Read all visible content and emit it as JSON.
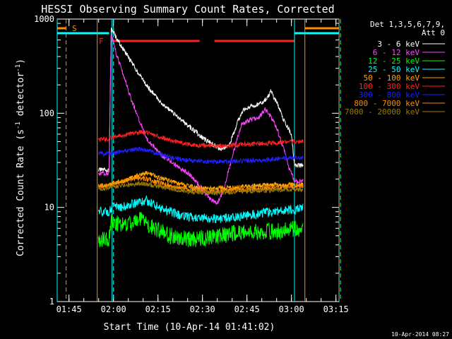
{
  "chart_data": {
    "type": "line",
    "title": "HESSI Observing Summary Count Rates, Corrected",
    "xlabel": "Start Time (10-Apr-14 01:41:02)",
    "ylabel": "Corrected Count Rate (s⁻¹ detector⁻¹)",
    "ylog": true,
    "ylim": [
      1,
      1000
    ],
    "xlim_minutes": [
      0,
      95
    ],
    "x_ticks": [
      "01:45",
      "02:00",
      "02:15",
      "02:30",
      "02:45",
      "03:00",
      "03:15"
    ],
    "y_ticks": [
      "1",
      "10",
      "100",
      "1000"
    ],
    "grid": false,
    "legend_placement": "right",
    "legend_title": [
      "Det 1,3,5,6,7,9,",
      "Att 0"
    ],
    "footer": "10-Apr-2014 08:27",
    "annotations": {
      "S": "S",
      "F": "F"
    },
    "series": [
      {
        "name": "3 - 6 keV",
        "color": "#ffffff",
        "points": [
          [
            13.9,
            25
          ],
          [
            17.5,
            25
          ],
          [
            18.2,
            800
          ],
          [
            20,
            620
          ],
          [
            25,
            350
          ],
          [
            30,
            200
          ],
          [
            35,
            130
          ],
          [
            40,
            95
          ],
          [
            45,
            70
          ],
          [
            50,
            52
          ],
          [
            55,
            42
          ],
          [
            58,
            45
          ],
          [
            61,
            85
          ],
          [
            63,
            110
          ],
          [
            66,
            120
          ],
          [
            69,
            130
          ],
          [
            71,
            150
          ],
          [
            72,
            170
          ],
          [
            74,
            130
          ],
          [
            76,
            90
          ],
          [
            79,
            60
          ],
          [
            80,
            28
          ],
          [
            83,
            28
          ]
        ]
      },
      {
        "name": "6 - 12 keV",
        "color": "#ff44ff",
        "points": [
          [
            13.9,
            23
          ],
          [
            17.5,
            23
          ],
          [
            18.2,
            700
          ],
          [
            20,
            420
          ],
          [
            23,
            220
          ],
          [
            25,
            140
          ],
          [
            28,
            80
          ],
          [
            30,
            55
          ],
          [
            35,
            36
          ],
          [
            40,
            28
          ],
          [
            45,
            22
          ],
          [
            48,
            17
          ],
          [
            50,
            14
          ],
          [
            52,
            12
          ],
          [
            54,
            11
          ],
          [
            56,
            15
          ],
          [
            58,
            26
          ],
          [
            60,
            45
          ],
          [
            62,
            75
          ],
          [
            65,
            85
          ],
          [
            68,
            90
          ],
          [
            70,
            110
          ],
          [
            72,
            92
          ],
          [
            74,
            70
          ],
          [
            76,
            45
          ],
          [
            78,
            27
          ],
          [
            80,
            19
          ],
          [
            83,
            19
          ]
        ]
      },
      {
        "name": "12 - 25 keV",
        "color": "#00ff00",
        "points": [
          [
            13.9,
            4.5
          ],
          [
            17.5,
            4.5
          ],
          [
            18.2,
            7
          ],
          [
            22,
            6.5
          ],
          [
            25,
            6.8
          ],
          [
            28,
            7.5
          ],
          [
            32,
            6.2
          ],
          [
            36,
            5.3
          ],
          [
            40,
            4.8
          ],
          [
            45,
            4.6
          ],
          [
            50,
            4.7
          ],
          [
            55,
            5
          ],
          [
            60,
            5.4
          ],
          [
            65,
            5.5
          ],
          [
            70,
            5.5
          ],
          [
            75,
            5.6
          ],
          [
            80,
            6
          ],
          [
            83,
            5.8
          ]
        ]
      },
      {
        "name": "25 - 50 keV",
        "color": "#00ffff",
        "points": [
          [
            13.9,
            9
          ],
          [
            17.5,
            9
          ],
          [
            18.2,
            10
          ],
          [
            22,
            10.2
          ],
          [
            25,
            10.8
          ],
          [
            28,
            11.5
          ],
          [
            30,
            11.8
          ],
          [
            34,
            10.2
          ],
          [
            38,
            9
          ],
          [
            42,
            8.2
          ],
          [
            46,
            7.8
          ],
          [
            50,
            7.6
          ],
          [
            55,
            7.6
          ],
          [
            60,
            7.9
          ],
          [
            65,
            8.3
          ],
          [
            70,
            8.8
          ],
          [
            75,
            9.2
          ],
          [
            80,
            9.5
          ],
          [
            83,
            9.8
          ]
        ]
      },
      {
        "name": "50 - 100 keV",
        "color": "#ffa500",
        "points": [
          [
            13.9,
            17
          ],
          [
            17.5,
            17
          ],
          [
            18.2,
            18
          ],
          [
            22,
            19
          ],
          [
            25,
            20.5
          ],
          [
            28,
            22
          ],
          [
            30,
            23
          ],
          [
            34,
            21
          ],
          [
            38,
            19
          ],
          [
            42,
            17.5
          ],
          [
            46,
            16.5
          ],
          [
            50,
            16
          ],
          [
            55,
            16
          ],
          [
            60,
            16.2
          ],
          [
            65,
            16.8
          ],
          [
            70,
            17.2
          ],
          [
            75,
            17.5
          ],
          [
            80,
            17.5
          ],
          [
            83,
            17.5
          ]
        ]
      },
      {
        "name": "100 - 300 keV",
        "color": "#ff2020",
        "points": [
          [
            13.9,
            53
          ],
          [
            17.5,
            53
          ],
          [
            18.2,
            55
          ],
          [
            22,
            58
          ],
          [
            25,
            61
          ],
          [
            28,
            63
          ],
          [
            30,
            62
          ],
          [
            34,
            57
          ],
          [
            38,
            52
          ],
          [
            42,
            48
          ],
          [
            46,
            46
          ],
          [
            50,
            45
          ],
          [
            55,
            45
          ],
          [
            60,
            46
          ],
          [
            65,
            47
          ],
          [
            70,
            48
          ],
          [
            75,
            49
          ],
          [
            80,
            50
          ],
          [
            83,
            50
          ]
        ]
      },
      {
        "name": "300 - 800 keV",
        "color": "#2020ff",
        "points": [
          [
            13.9,
            37
          ],
          [
            17.5,
            37
          ],
          [
            18.2,
            38
          ],
          [
            22,
            39
          ],
          [
            25,
            40.5
          ],
          [
            28,
            42
          ],
          [
            30,
            41
          ],
          [
            34,
            37
          ],
          [
            38,
            34
          ],
          [
            42,
            32
          ],
          [
            46,
            31
          ],
          [
            50,
            30.5
          ],
          [
            55,
            30.5
          ],
          [
            60,
            31
          ],
          [
            65,
            31.5
          ],
          [
            70,
            32
          ],
          [
            75,
            33
          ],
          [
            80,
            34
          ],
          [
            83,
            34
          ]
        ]
      },
      {
        "name": "800 - 7000 keV",
        "color": "#ff8c00",
        "points": [
          [
            13.9,
            17
          ],
          [
            17.5,
            17
          ],
          [
            18.2,
            18
          ],
          [
            22,
            18.8
          ],
          [
            25,
            20
          ],
          [
            28,
            20.5
          ],
          [
            30,
            20
          ],
          [
            34,
            18.5
          ],
          [
            38,
            17
          ],
          [
            42,
            16
          ],
          [
            46,
            15.5
          ],
          [
            50,
            15
          ],
          [
            55,
            15
          ],
          [
            60,
            15.3
          ],
          [
            65,
            15.6
          ],
          [
            70,
            16
          ],
          [
            75,
            16.3
          ],
          [
            80,
            16.5
          ],
          [
            83,
            16.5
          ]
        ]
      },
      {
        "name": "7000 - 20000 keV",
        "color": "#9a7a00",
        "points": [
          [
            13.9,
            16
          ],
          [
            17.5,
            16
          ],
          [
            18.2,
            16.5
          ],
          [
            22,
            17
          ],
          [
            25,
            17.5
          ],
          [
            28,
            18
          ],
          [
            30,
            17.8
          ],
          [
            34,
            16.8
          ],
          [
            38,
            15.8
          ],
          [
            42,
            15
          ],
          [
            46,
            14.6
          ],
          [
            50,
            14.3
          ],
          [
            55,
            14.3
          ],
          [
            60,
            14.6
          ],
          [
            65,
            14.9
          ],
          [
            70,
            15.2
          ],
          [
            75,
            15.4
          ],
          [
            80,
            15.5
          ],
          [
            83,
            15.5
          ]
        ]
      }
    ],
    "markers": {
      "cyan_solid": [
        0,
        18.5,
        80,
        95
      ],
      "cyan_dashed": [
        18.5,
        95
      ],
      "orange_solid": [
        13.5,
        83.5
      ],
      "orange_dashed": [
        3,
        95
      ]
    },
    "bands": {
      "night": {
        "color": "#00ffff",
        "segments": [
          [
            0,
            17.5
          ],
          [
            80,
            95
          ]
        ]
      },
      "saa": {
        "color": "#ff8c00",
        "segments": [
          [
            0,
            3
          ],
          [
            83.5,
            95
          ]
        ]
      },
      "flare": {
        "color": "#ff2020",
        "segments": [
          [
            18.2,
            48
          ],
          [
            53,
            80
          ]
        ]
      }
    }
  }
}
